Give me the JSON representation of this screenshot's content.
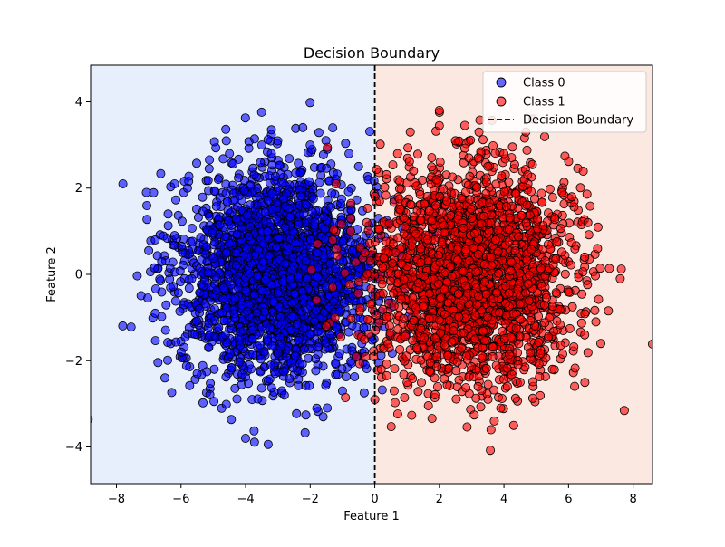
{
  "chart_data": {
    "type": "scatter",
    "title": "Decision Boundary",
    "xlabel": "Feature 1",
    "ylabel": "Feature 2",
    "xlim": [
      -8.8,
      8.6
    ],
    "ylim": [
      -4.85,
      4.85
    ],
    "x_ticks": [
      -8,
      -6,
      -4,
      -2,
      0,
      2,
      4,
      6,
      8
    ],
    "y_ticks": [
      -4,
      -2,
      0,
      2,
      4
    ],
    "grid": false,
    "legend_position": "top-right",
    "boundary": {
      "name": "Decision Boundary",
      "x": 0,
      "style": "dashed",
      "color": "#000000"
    },
    "regions": [
      {
        "side": "left",
        "x_range": [
          -8.8,
          0
        ],
        "color": "#e6effb"
      },
      {
        "side": "right",
        "x_range": [
          0,
          8.6
        ],
        "color": "#fbe9e1"
      }
    ],
    "series": [
      {
        "name": "Class 0",
        "color": "#0000ff",
        "distribution": {
          "mean": [
            -3,
            0
          ],
          "std": [
            1.5,
            1.2
          ],
          "count": 2500
        },
        "points": [
          [
            -7.8,
            2.1
          ],
          [
            -4.0,
            -3.8
          ],
          [
            -1.6,
            -3.3
          ],
          [
            -1.3,
            3.4
          ],
          [
            -4.6,
            3.1
          ],
          [
            -3.5,
            3.0
          ],
          [
            -2.0,
            3.0
          ],
          [
            -4.5,
            2.8
          ],
          [
            -6.8,
            0.8
          ],
          [
            -7.0,
            0.55
          ],
          [
            -6.6,
            0.3
          ],
          [
            -6.8,
            -0.9
          ],
          [
            -6.5,
            -2.4
          ],
          [
            -6.0,
            -1.8
          ],
          [
            -5.5,
            -2.3
          ],
          [
            -3.8,
            -2.9
          ],
          [
            -2.8,
            -2.8
          ],
          [
            -1.0,
            -2.7
          ],
          [
            -0.4,
            -1.6
          ],
          [
            -0.3,
            -2.1
          ],
          [
            -0.2,
            2.2
          ],
          [
            -0.5,
            2.5
          ],
          [
            -0.8,
            2.8
          ],
          [
            -5.8,
            2.0
          ],
          [
            -6.2,
            2.1
          ],
          [
            -6.4,
            1.4
          ],
          [
            -6.2,
            0.9
          ]
        ]
      },
      {
        "name": "Class 1",
        "color": "#ff0000",
        "distribution": {
          "mean": [
            3,
            0
          ],
          "std": [
            1.5,
            1.2
          ],
          "count": 2500
        },
        "points": [
          [
            2.0,
            3.8
          ],
          [
            2.0,
            3.45
          ],
          [
            2.5,
            3.1
          ],
          [
            3.2,
            2.7
          ],
          [
            3.5,
            2.5
          ],
          [
            4.0,
            2.8
          ],
          [
            7.6,
            -0.1
          ],
          [
            7.0,
            -1.6
          ],
          [
            6.5,
            -1.4
          ],
          [
            6.9,
            0.6
          ],
          [
            6.6,
            1.2
          ],
          [
            6.1,
            1.8
          ],
          [
            5.8,
            1.9
          ],
          [
            4.3,
            -3.5
          ],
          [
            3.7,
            -3.4
          ],
          [
            3.6,
            -3.6
          ],
          [
            3.9,
            -3.1
          ],
          [
            3.2,
            -2.6
          ],
          [
            4.5,
            -2.5
          ],
          [
            1.0,
            -2.5
          ],
          [
            0.6,
            -2.7
          ],
          [
            0.2,
            -2.2
          ],
          [
            0.0,
            -2.9
          ],
          [
            -1.2,
            2.1
          ],
          [
            -1.5,
            -1.2
          ],
          [
            -1.8,
            -0.6
          ],
          [
            -1.3,
            -0.3
          ],
          [
            5.5,
            -2.2
          ],
          [
            6.5,
            0.4
          ],
          [
            1.2,
            2.4
          ]
        ]
      }
    ]
  }
}
